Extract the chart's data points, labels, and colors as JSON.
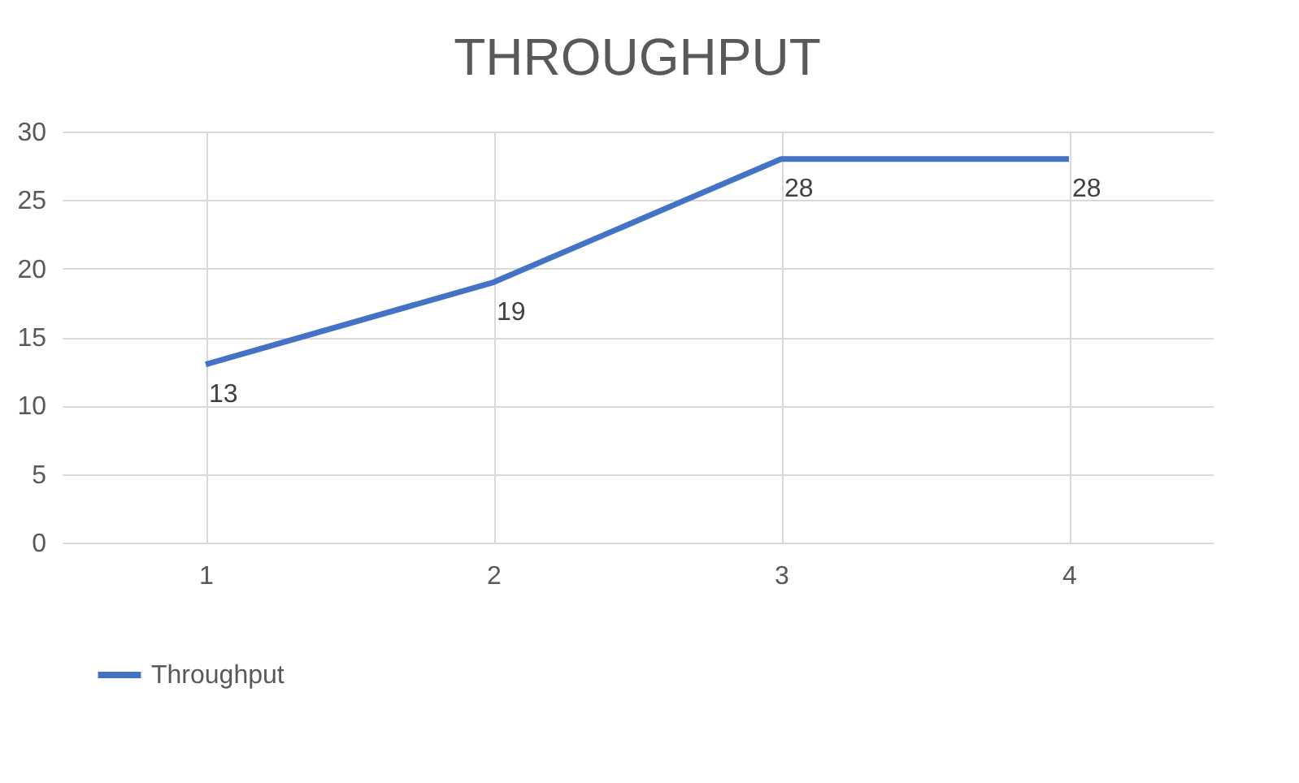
{
  "chart_data": {
    "type": "line",
    "title": "THROUGHPUT",
    "categories": [
      "1",
      "2",
      "3",
      "4"
    ],
    "series": [
      {
        "name": "Throughput",
        "color": "#4472c4",
        "values": [
          13,
          19,
          28,
          28
        ]
      }
    ],
    "ylim": [
      0,
      30
    ],
    "yticks": [
      0,
      5,
      10,
      15,
      20,
      25,
      30
    ],
    "grid": true,
    "legend": "bottom",
    "data_labels": true,
    "marker": "none",
    "line_style": "solid"
  }
}
